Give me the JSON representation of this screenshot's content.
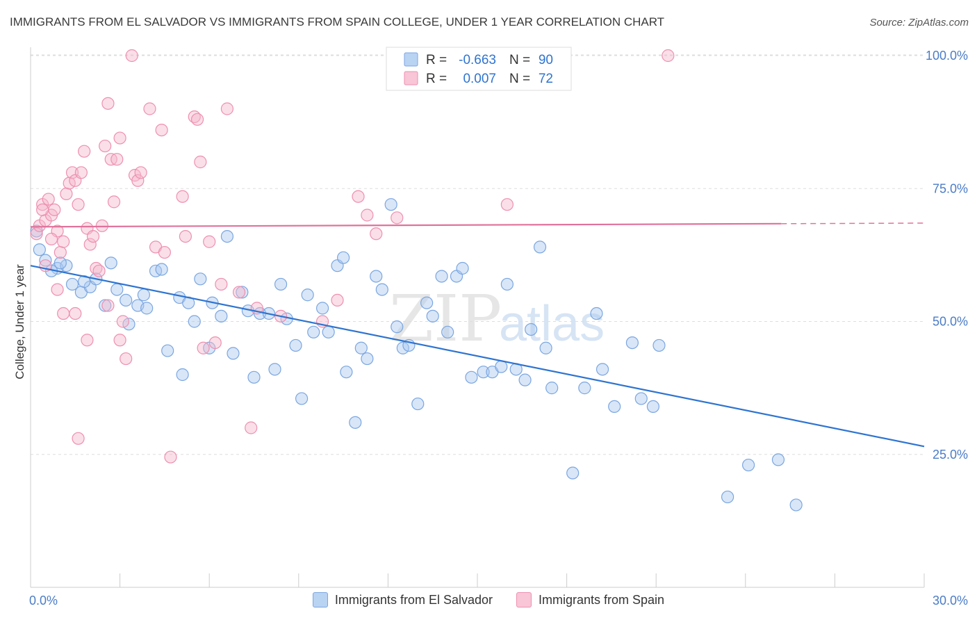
{
  "title": "IMMIGRANTS FROM EL SALVADOR VS IMMIGRANTS FROM SPAIN COLLEGE, UNDER 1 YEAR CORRELATION CHART",
  "source": "Source: ZipAtlas.com",
  "watermark": {
    "zip": "ZIP",
    "atlas": "atlas"
  },
  "colors": {
    "blue_fill": "#a9c8f0",
    "blue_stroke": "#7aa6e0",
    "blue_line": "#2e74d0",
    "pink_fill": "#f5b8cc",
    "pink_stroke": "#ee8fb0",
    "pink_line": "#e0729a",
    "tick_label": "#4a7cc7",
    "grid": "#dddddd"
  },
  "chart_data": {
    "type": "scatter",
    "xlabel": "",
    "ylabel": "College, Under 1 year",
    "xlim": [
      0,
      30
    ],
    "ylim": [
      0,
      100
    ],
    "x_tick_labels": [
      {
        "value": 0,
        "label": "0.0%"
      },
      {
        "value": 30,
        "label": "30.0%"
      }
    ],
    "y_tick_labels": [
      {
        "value": 100,
        "label": "100.0%"
      },
      {
        "value": 75,
        "label": "75.0%"
      },
      {
        "value": 50,
        "label": "50.0%"
      },
      {
        "value": 25,
        "label": "25.0%"
      }
    ],
    "stats_legend": [
      {
        "series": "Immigrants from El Salvador",
        "r_label": "R =",
        "r": "-0.663",
        "n_label": "N =",
        "n": "90"
      },
      {
        "series": "Immigrants from Spain",
        "r_label": "R =",
        "r": "0.007",
        "n_label": "N =",
        "n": "72"
      }
    ],
    "series": [
      {
        "name": "Immigrants from El Salvador",
        "color": "blue",
        "trend": {
          "x0": 0,
          "y0": 60.5,
          "x1": 30,
          "y1": 26.5,
          "solid_to": 30
        },
        "points": [
          [
            0.3,
            63.5
          ],
          [
            0.5,
            61.5
          ],
          [
            0.9,
            60
          ],
          [
            1.2,
            60.5
          ],
          [
            0.7,
            59.5
          ],
          [
            1.4,
            57
          ],
          [
            1.7,
            55.5
          ],
          [
            2.0,
            56.5
          ],
          [
            2.2,
            58
          ],
          [
            2.5,
            53
          ],
          [
            2.7,
            61
          ],
          [
            2.9,
            56
          ],
          [
            3.2,
            54
          ],
          [
            3.3,
            49.5
          ],
          [
            3.6,
            53
          ],
          [
            3.8,
            55
          ],
          [
            4.2,
            59.5
          ],
          [
            4.4,
            59.8
          ],
          [
            4.6,
            44.5
          ],
          [
            5.0,
            54.5
          ],
          [
            5.1,
            40
          ],
          [
            5.3,
            53.5
          ],
          [
            5.5,
            50
          ],
          [
            5.7,
            58
          ],
          [
            6.0,
            45
          ],
          [
            6.1,
            53.5
          ],
          [
            6.4,
            51
          ],
          [
            6.6,
            66
          ],
          [
            6.8,
            44
          ],
          [
            7.1,
            55.5
          ],
          [
            7.3,
            52
          ],
          [
            7.5,
            39.5
          ],
          [
            7.7,
            51.5
          ],
          [
            8.0,
            51.5
          ],
          [
            8.2,
            41
          ],
          [
            8.4,
            57
          ],
          [
            8.6,
            50.5
          ],
          [
            8.9,
            45.5
          ],
          [
            9.1,
            35.5
          ],
          [
            9.3,
            55
          ],
          [
            9.5,
            48
          ],
          [
            9.8,
            52.5
          ],
          [
            10.0,
            48
          ],
          [
            10.3,
            60.5
          ],
          [
            10.5,
            62
          ],
          [
            10.6,
            40.5
          ],
          [
            10.9,
            31
          ],
          [
            11.1,
            45
          ],
          [
            11.3,
            43
          ],
          [
            11.6,
            58.5
          ],
          [
            11.8,
            56
          ],
          [
            12.1,
            72
          ],
          [
            12.3,
            49
          ],
          [
            12.5,
            45
          ],
          [
            12.7,
            45.5
          ],
          [
            13.0,
            34.5
          ],
          [
            13.3,
            53.5
          ],
          [
            13.5,
            51
          ],
          [
            13.8,
            58.5
          ],
          [
            14.0,
            48
          ],
          [
            14.3,
            58.5
          ],
          [
            14.5,
            60
          ],
          [
            14.8,
            39.5
          ],
          [
            15.2,
            40.5
          ],
          [
            15.5,
            40.5
          ],
          [
            15.8,
            41.5
          ],
          [
            16.0,
            57
          ],
          [
            16.3,
            41
          ],
          [
            16.6,
            39
          ],
          [
            16.8,
            48.5
          ],
          [
            17.1,
            64
          ],
          [
            17.3,
            45
          ],
          [
            17.5,
            37.5
          ],
          [
            18.2,
            21.5
          ],
          [
            18.6,
            37.5
          ],
          [
            19.0,
            51.5
          ],
          [
            19.2,
            41
          ],
          [
            19.6,
            34
          ],
          [
            20.2,
            46
          ],
          [
            20.5,
            35.5
          ],
          [
            20.9,
            34
          ],
          [
            21.1,
            45.5
          ],
          [
            23.4,
            17
          ],
          [
            24.1,
            23
          ],
          [
            25.1,
            24
          ],
          [
            25.7,
            15.5
          ],
          [
            0.2,
            67
          ],
          [
            1.0,
            61
          ],
          [
            1.8,
            57.5
          ],
          [
            3.9,
            52.5
          ]
        ]
      },
      {
        "name": "Immigrants from Spain",
        "color": "pink",
        "trend": {
          "x0": 0,
          "y0": 67.8,
          "x1": 30,
          "y1": 68.5,
          "solid_to": 25.2
        },
        "points": [
          [
            0.2,
            66.5
          ],
          [
            0.3,
            68
          ],
          [
            0.4,
            72
          ],
          [
            0.5,
            69
          ],
          [
            0.6,
            73
          ],
          [
            0.7,
            70
          ],
          [
            0.8,
            71
          ],
          [
            0.9,
            67
          ],
          [
            1.0,
            63
          ],
          [
            1.1,
            65
          ],
          [
            1.2,
            74
          ],
          [
            1.3,
            76
          ],
          [
            1.4,
            78
          ],
          [
            1.5,
            76.5
          ],
          [
            1.6,
            72
          ],
          [
            1.7,
            78
          ],
          [
            1.8,
            82
          ],
          [
            1.9,
            67.5
          ],
          [
            2.0,
            64.5
          ],
          [
            2.1,
            66
          ],
          [
            2.2,
            60
          ],
          [
            2.3,
            59.5
          ],
          [
            2.4,
            68
          ],
          [
            2.5,
            83
          ],
          [
            2.6,
            91
          ],
          [
            2.7,
            80.5
          ],
          [
            2.8,
            72.5
          ],
          [
            2.9,
            80.5
          ],
          [
            3.0,
            84.5
          ],
          [
            3.1,
            50
          ],
          [
            3.2,
            43
          ],
          [
            3.4,
            100
          ],
          [
            3.5,
            77.5
          ],
          [
            3.6,
            76.5
          ],
          [
            3.7,
            78
          ],
          [
            4.0,
            90
          ],
          [
            4.2,
            64
          ],
          [
            4.4,
            86
          ],
          [
            4.5,
            63
          ],
          [
            4.7,
            24.5
          ],
          [
            5.1,
            73.5
          ],
          [
            5.2,
            66
          ],
          [
            5.5,
            88.5
          ],
          [
            5.6,
            88
          ],
          [
            5.7,
            80
          ],
          [
            5.8,
            45
          ],
          [
            6.0,
            65
          ],
          [
            6.2,
            46
          ],
          [
            6.4,
            57
          ],
          [
            6.6,
            90
          ],
          [
            7.0,
            55.5
          ],
          [
            7.4,
            30
          ],
          [
            7.6,
            52.5
          ],
          [
            8.4,
            51
          ],
          [
            9.8,
            50
          ],
          [
            10.3,
            54
          ],
          [
            11.0,
            73.5
          ],
          [
            11.3,
            70
          ],
          [
            11.6,
            66.5
          ],
          [
            12.3,
            69.5
          ],
          [
            16.0,
            72
          ],
          [
            21.4,
            100
          ],
          [
            1.9,
            46.5
          ],
          [
            0.9,
            56
          ],
          [
            1.6,
            28
          ],
          [
            1.1,
            51.5
          ],
          [
            2.6,
            53
          ],
          [
            3.0,
            46.5
          ],
          [
            0.4,
            71
          ],
          [
            0.7,
            65.5
          ],
          [
            0.5,
            60.5
          ],
          [
            1.5,
            51.5
          ]
        ]
      }
    ]
  },
  "legend_bottom": [
    {
      "label": "Immigrants from El Salvador",
      "color": "blue"
    },
    {
      "label": "Immigrants from Spain",
      "color": "pink"
    }
  ]
}
